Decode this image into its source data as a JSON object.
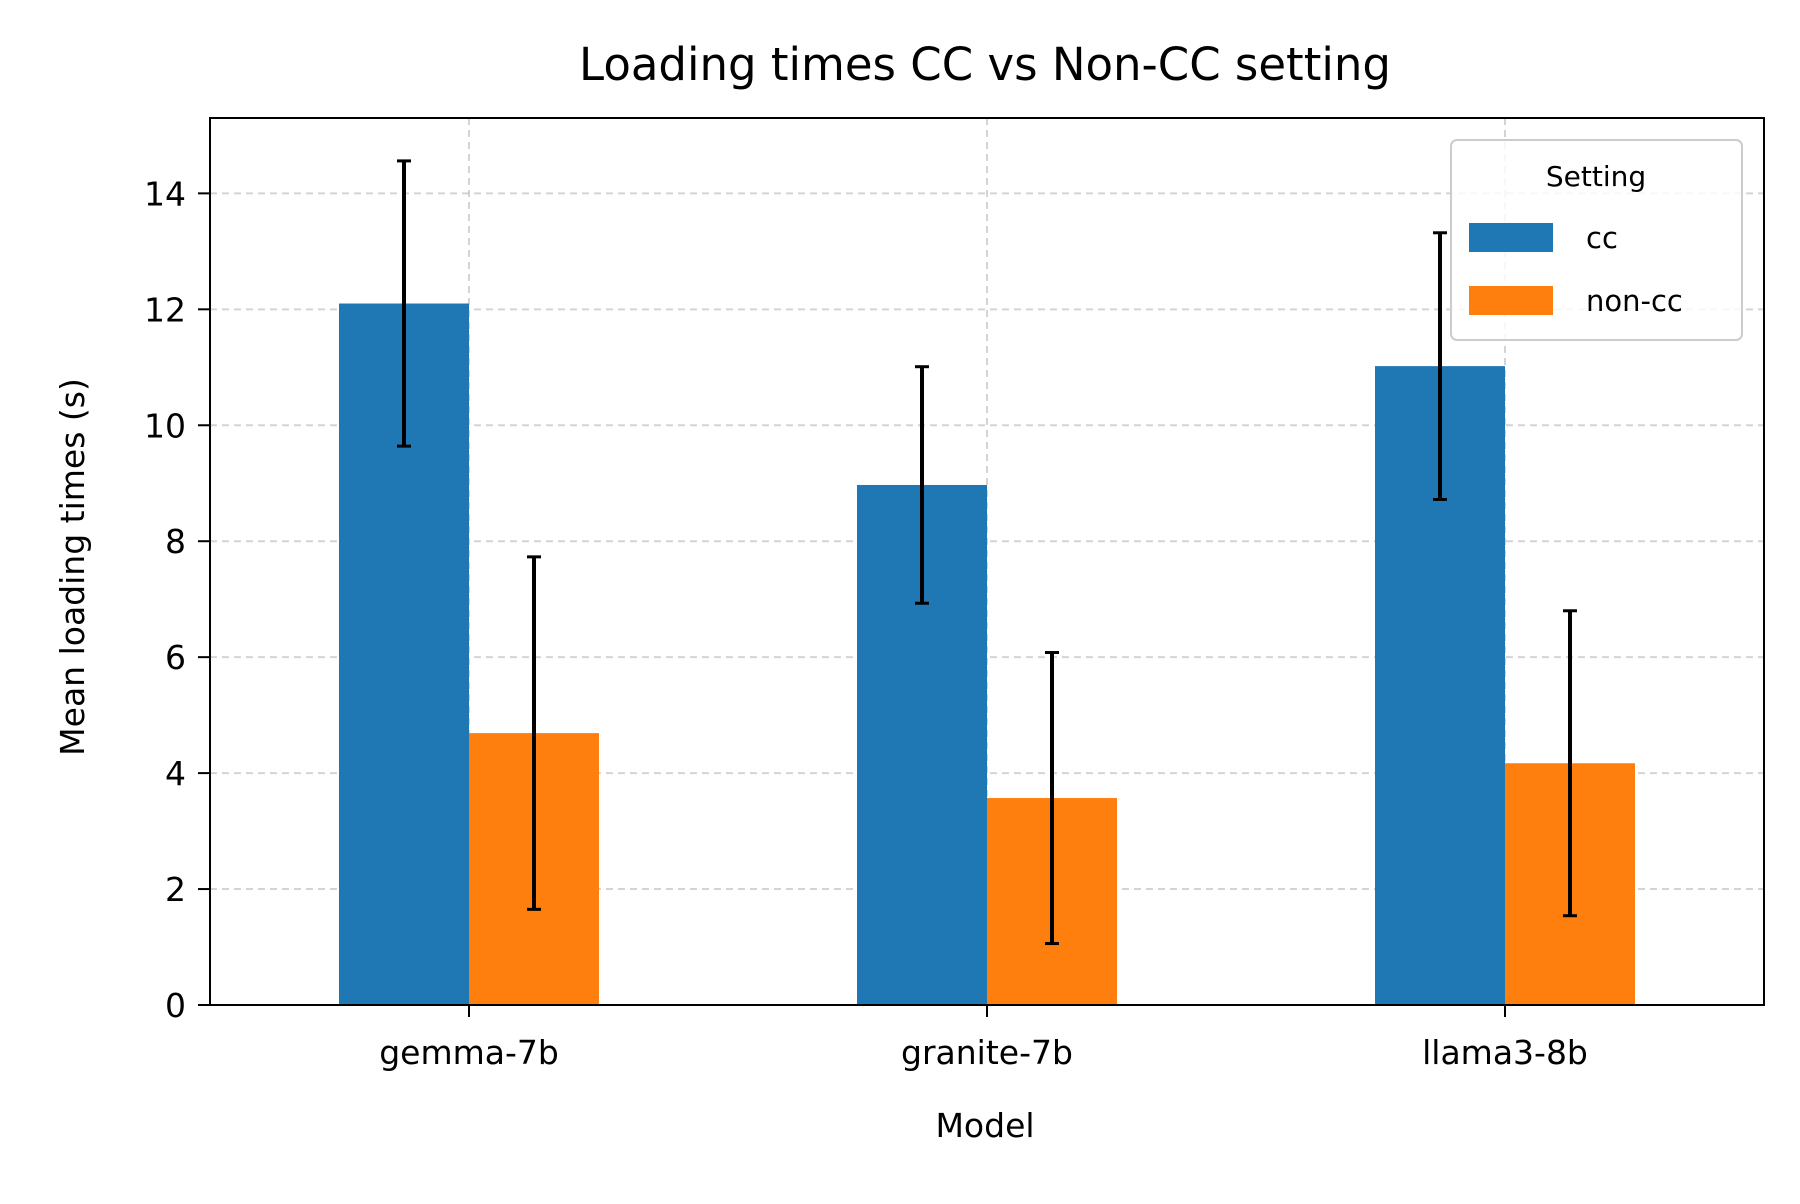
{
  "chart_data": {
    "type": "bar",
    "title": "Loading times CC vs Non-CC setting",
    "xlabel": "Model",
    "ylabel": "Mean loading times (s)",
    "categories": [
      "gemma-7b",
      "granite-7b",
      "llama3-8b"
    ],
    "ylim": [
      0,
      15.3
    ],
    "yticks": [
      0,
      2,
      4,
      6,
      8,
      10,
      12,
      14
    ],
    "grid": true,
    "legend": {
      "title": "Setting",
      "placement": "top-right"
    },
    "series": [
      {
        "name": "cc",
        "color": "#1f77b4",
        "values": [
          12.1,
          8.97,
          11.02
        ],
        "error": [
          2.46,
          2.04,
          2.3
        ]
      },
      {
        "name": "non-cc",
        "color": "#ff7f0e",
        "values": [
          4.69,
          3.57,
          4.17
        ],
        "error": [
          3.04,
          2.51,
          2.63
        ]
      }
    ]
  }
}
